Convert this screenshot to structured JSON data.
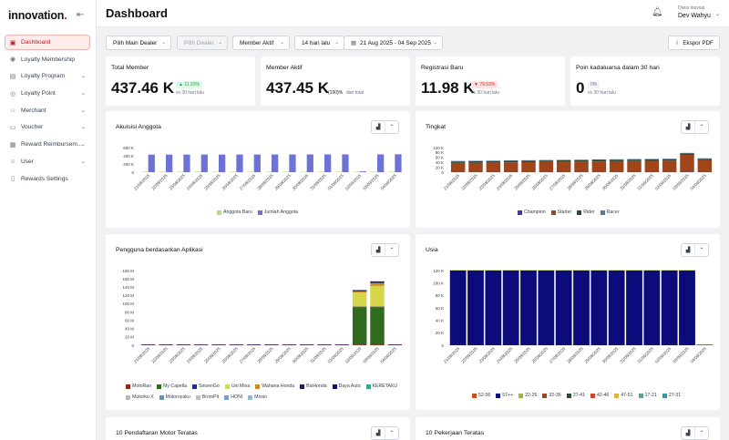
{
  "app": {
    "logo_text": "innovation",
    "logo_dot": "."
  },
  "sidebar": {
    "items": [
      {
        "label": "Dashboard",
        "icon": "dashboard-icon",
        "active": true
      },
      {
        "label": "Loyalty Membership",
        "icon": "users-icon"
      },
      {
        "label": "Loyalty Program",
        "icon": "calendar-icon",
        "chev": true
      },
      {
        "label": "Loyalty Point",
        "icon": "point-icon",
        "chev": true
      },
      {
        "label": "Merchant",
        "icon": "store-icon",
        "chev": true
      },
      {
        "label": "Voucher",
        "icon": "voucher-icon",
        "chev": true
      },
      {
        "label": "Reward Reimbursem...",
        "icon": "reward-icon",
        "chev": true
      },
      {
        "label": "User",
        "icon": "user-icon",
        "chev": true
      },
      {
        "label": "Rewards Settings",
        "icon": "settings-icon"
      }
    ]
  },
  "header": {
    "title": "Dashboard",
    "user_role": "Divisi Inovasi",
    "user_name": "Dev Wahyu"
  },
  "filters": {
    "dealer": "Pilih Main Dealer",
    "sub_dealer": "Pilih Dealer",
    "member": "Member Aktif",
    "period": "14 hari lalu",
    "date_range": "21 Aug 2025 - 04 Sep 2025",
    "export": "Ekspor PDF"
  },
  "stats": [
    {
      "label": "Total Member",
      "value": "437.46 K",
      "badge": "▲ 11.33%",
      "note": "vs 30 hari lalu"
    },
    {
      "label": "Member Aktif",
      "value": "437.45 K",
      "pct": "(100)%",
      "note": "dari total"
    },
    {
      "label": "Registrasi Baru",
      "value": "11.98 K",
      "badge": "▼ 79.53%",
      "note": "vs 30 hari lalu"
    },
    {
      "label": "Poin kadaluarsa dalam 30 hari",
      "value": "0",
      "badge": "0%",
      "note": "vs 30 hari lalu"
    }
  ],
  "colors": {
    "acq_new": "#b5d98a",
    "acq_total": "#6c72d6",
    "champion": "#3b3f8f",
    "starter": "#a0441a",
    "rider": "#2e4c35",
    "racer": "#4f79a8",
    "green": "#2e6b1f",
    "yellow": "#d6d64a",
    "navy": "#0b0b7a"
  },
  "chart_data": [
    {
      "id": "acquisition",
      "type": "bar",
      "title": "Akuisisi Anggota",
      "categories": [
        "21/08/2025",
        "22/08/2025",
        "23/08/2025",
        "24/08/2025",
        "25/08/2025",
        "26/08/2025",
        "27/08/2025",
        "28/08/2025",
        "29/08/2025",
        "30/08/2025",
        "31/08/2025",
        "01/09/2025",
        "02/09/2025",
        "03/09/2025",
        "04/09/2025"
      ],
      "yticks": [
        "600 K",
        "400 K",
        "200 K",
        "0"
      ],
      "ylim": [
        0,
        600000
      ],
      "series": [
        {
          "name": "Anggota Baru",
          "values": [
            1000,
            1000,
            900,
            800,
            1100,
            1000,
            900,
            900,
            800,
            800,
            900,
            1000,
            800,
            900,
            1000
          ]
        },
        {
          "name": "Jumlah Anggota",
          "values": [
            428000,
            428500,
            429000,
            429500,
            430000,
            430500,
            431000,
            431500,
            432000,
            432500,
            433000,
            433500,
            20000,
            434000,
            437000
          ]
        }
      ]
    },
    {
      "id": "tier",
      "type": "bar",
      "title": "Tingkat",
      "stacked": true,
      "categories": [
        "21/08/2025",
        "22/08/2025",
        "23/08/2025",
        "24/08/2025",
        "25/08/2025",
        "26/08/2025",
        "27/08/2025",
        "28/08/2025",
        "29/08/2025",
        "30/08/2025",
        "31/08/2025",
        "01/09/2025",
        "02/09/2025",
        "03/09/2025",
        "04/09/2025"
      ],
      "yticks": [
        "120 K",
        "80 K",
        "60 K",
        "40 K",
        "20 K",
        "0"
      ],
      "ylim": [
        0,
        130000
      ],
      "series": [
        {
          "name": "Champion",
          "values": [
            1000,
            1000,
            1000,
            1000,
            1000,
            1000,
            1000,
            1000,
            1000,
            1000,
            1000,
            1000,
            1000,
            1500,
            1000
          ]
        },
        {
          "name": "Starter",
          "values": [
            48000,
            49000,
            50000,
            51000,
            52000,
            53000,
            54000,
            55000,
            56000,
            57000,
            58000,
            59000,
            60000,
            90000,
            62000
          ]
        },
        {
          "name": "Rider",
          "values": [
            8000,
            8000,
            8000,
            8000,
            8000,
            8000,
            8000,
            8000,
            8000,
            8000,
            8000,
            8000,
            8000,
            8000,
            8000
          ]
        },
        {
          "name": "Racer",
          "values": [
            2000,
            2000,
            2000,
            2000,
            2000,
            2000,
            2000,
            2000,
            2000,
            2000,
            2000,
            2000,
            2000,
            2000,
            2000
          ]
        }
      ]
    },
    {
      "id": "app",
      "type": "bar",
      "title": "Pengguna berdasarkan Aplikasi",
      "stacked": true,
      "categories": [
        "21/08/2025",
        "22/08/2025",
        "23/08/2025",
        "24/08/2025",
        "25/08/2025",
        "26/08/2025",
        "27/08/2025",
        "28/08/2025",
        "29/08/2025",
        "30/08/2025",
        "31/08/2025",
        "01/09/2025",
        "02/09/2025",
        "03/09/2025",
        "04/09/2025"
      ],
      "yticks": [
        "180 M",
        "160 M",
        "140 M",
        "120 M",
        "100 M",
        "80 M",
        "60 M",
        "40 M",
        "20 M",
        "0"
      ],
      "ylim": [
        0,
        180000000
      ],
      "series": [
        {
          "name": "MotoRan",
          "values": [
            1000000,
            1000000,
            1000000,
            1000000,
            1000000,
            1000000,
            1000000,
            1000000,
            1000000,
            1000000,
            1000000,
            1000000,
            2000000,
            2000000,
            1000000
          ]
        },
        {
          "name": "My Capella",
          "values": [
            0,
            0,
            0,
            0,
            0,
            0,
            0,
            0,
            0,
            0,
            0,
            0,
            90000000,
            90000000,
            0
          ]
        },
        {
          "name": "SinsenGo",
          "values": [
            1000000,
            1000000,
            1000000,
            1000000,
            1000000,
            1000000,
            1000000,
            1000000,
            1000000,
            1000000,
            1000000,
            1000000,
            1000000,
            1000000,
            1000000
          ]
        },
        {
          "name": "Uni Mina",
          "values": [
            0,
            0,
            0,
            0,
            0,
            0,
            0,
            0,
            0,
            0,
            0,
            0,
            34000000,
            50000000,
            0
          ]
        },
        {
          "name": "Wahana Honda",
          "values": [
            0,
            0,
            0,
            0,
            0,
            0,
            0,
            0,
            0,
            0,
            0,
            0,
            3000000,
            7000000,
            0
          ]
        },
        {
          "name": "BisHonda",
          "values": [
            0,
            0,
            0,
            0,
            0,
            0,
            0,
            0,
            0,
            0,
            0,
            0,
            3000000,
            4000000,
            0
          ]
        },
        {
          "name": "Daya Auto",
          "values": [
            0,
            0,
            0,
            0,
            0,
            0,
            0,
            0,
            0,
            0,
            0,
            0,
            0,
            0,
            0
          ]
        },
        {
          "name": "KERETAKU",
          "values": [
            0,
            0,
            0,
            0,
            0,
            0,
            0,
            0,
            0,
            0,
            0,
            0,
            0,
            0,
            0
          ]
        },
        {
          "name": "Motorku X",
          "values": [
            0,
            0,
            0,
            0,
            0,
            0,
            0,
            0,
            0,
            0,
            0,
            0,
            0,
            0,
            0
          ]
        },
        {
          "name": "Motoroyaku",
          "values": [
            0,
            0,
            0,
            0,
            0,
            0,
            0,
            0,
            0,
            0,
            0,
            0,
            0,
            0,
            0
          ]
        },
        {
          "name": "BromPit",
          "values": [
            0,
            0,
            0,
            0,
            0,
            0,
            0,
            0,
            0,
            0,
            0,
            0,
            0,
            0,
            0
          ]
        },
        {
          "name": "HONI",
          "values": [
            0,
            0,
            0,
            0,
            0,
            0,
            0,
            0,
            0,
            0,
            0,
            0,
            0,
            0,
            0
          ]
        },
        {
          "name": "Mosio",
          "values": [
            0,
            0,
            0,
            0,
            0,
            0,
            0,
            0,
            0,
            0,
            0,
            0,
            0,
            0,
            0
          ]
        }
      ]
    },
    {
      "id": "age",
      "type": "bar",
      "title": "Usia",
      "stacked": true,
      "categories": [
        "21/08/2025",
        "22/08/2025",
        "23/08/2025",
        "24/08/2025",
        "25/08/2025",
        "26/08/2025",
        "27/08/2025",
        "28/08/2025",
        "29/08/2025",
        "30/08/2025",
        "31/08/2025",
        "01/09/2025",
        "02/09/2025",
        "03/09/2025",
        "04/09/2025"
      ],
      "yticks": [
        "120 K",
        "100 K",
        "80 K",
        "60 K",
        "40 K",
        "20 K",
        "0"
      ],
      "ylim": [
        0,
        120000
      ],
      "series": [
        {
          "name": "52-56",
          "values": [
            100,
            100,
            100,
            100,
            100,
            100,
            100,
            100,
            100,
            100,
            100,
            100,
            100,
            100,
            100
          ]
        },
        {
          "name": "57++",
          "values": [
            120000,
            120000,
            120000,
            120000,
            120000,
            120000,
            120000,
            120000,
            120000,
            120000,
            120000,
            120000,
            120000,
            120000,
            500
          ]
        },
        {
          "name": "22-26",
          "values": [
            500,
            500,
            500,
            500,
            500,
            500,
            500,
            500,
            500,
            500,
            500,
            500,
            500,
            500,
            100
          ]
        },
        {
          "name": "32-36",
          "values": [
            0,
            0,
            0,
            0,
            0,
            0,
            0,
            0,
            0,
            0,
            0,
            0,
            0,
            0,
            0
          ]
        },
        {
          "name": "37-41",
          "values": [
            0,
            0,
            0,
            0,
            0,
            0,
            0,
            0,
            0,
            0,
            0,
            0,
            0,
            0,
            0
          ]
        },
        {
          "name": "42-46",
          "values": [
            0,
            0,
            0,
            0,
            0,
            0,
            0,
            0,
            0,
            0,
            0,
            0,
            0,
            0,
            0
          ]
        },
        {
          "name": "47-51",
          "values": [
            0,
            0,
            0,
            0,
            0,
            0,
            0,
            0,
            0,
            0,
            0,
            0,
            0,
            0,
            0
          ]
        },
        {
          "name": "17-21",
          "values": [
            0,
            0,
            0,
            0,
            0,
            0,
            0,
            0,
            0,
            0,
            0,
            0,
            0,
            0,
            0
          ]
        },
        {
          "name": "27-31",
          "values": [
            0,
            0,
            0,
            0,
            0,
            0,
            0,
            0,
            0,
            0,
            0,
            0,
            0,
            0,
            0
          ]
        }
      ]
    }
  ],
  "series_colors": {
    "acquisition": [
      "#b5d98a",
      "#6c72d6"
    ],
    "tier": [
      "#3b3f8f",
      "#a0441a",
      "#2e4c35",
      "#4f79a8"
    ],
    "app": [
      "#8b2a1a",
      "#2e6b1f",
      "#1e2a9a",
      "#d6d64a",
      "#c98a2e",
      "#1a1f6b",
      "#0b0b7a",
      "#3aa58a",
      "#b9b9b9",
      "#6d8fb0",
      "#c0c0c0",
      "#7f9fc4",
      "#9bb5d0"
    ],
    "age": [
      "#c0541a",
      "#0b0b7a",
      "#9db83a",
      "#a0441a",
      "#2e4c35",
      "#c94a2a",
      "#e0b048",
      "#5ba08a",
      "#2d9aa0"
    ]
  },
  "bottom": {
    "left_title": "10 Pendaftaran Motor Teratas",
    "right_title": "10 Pekerjaan Teratas"
  }
}
